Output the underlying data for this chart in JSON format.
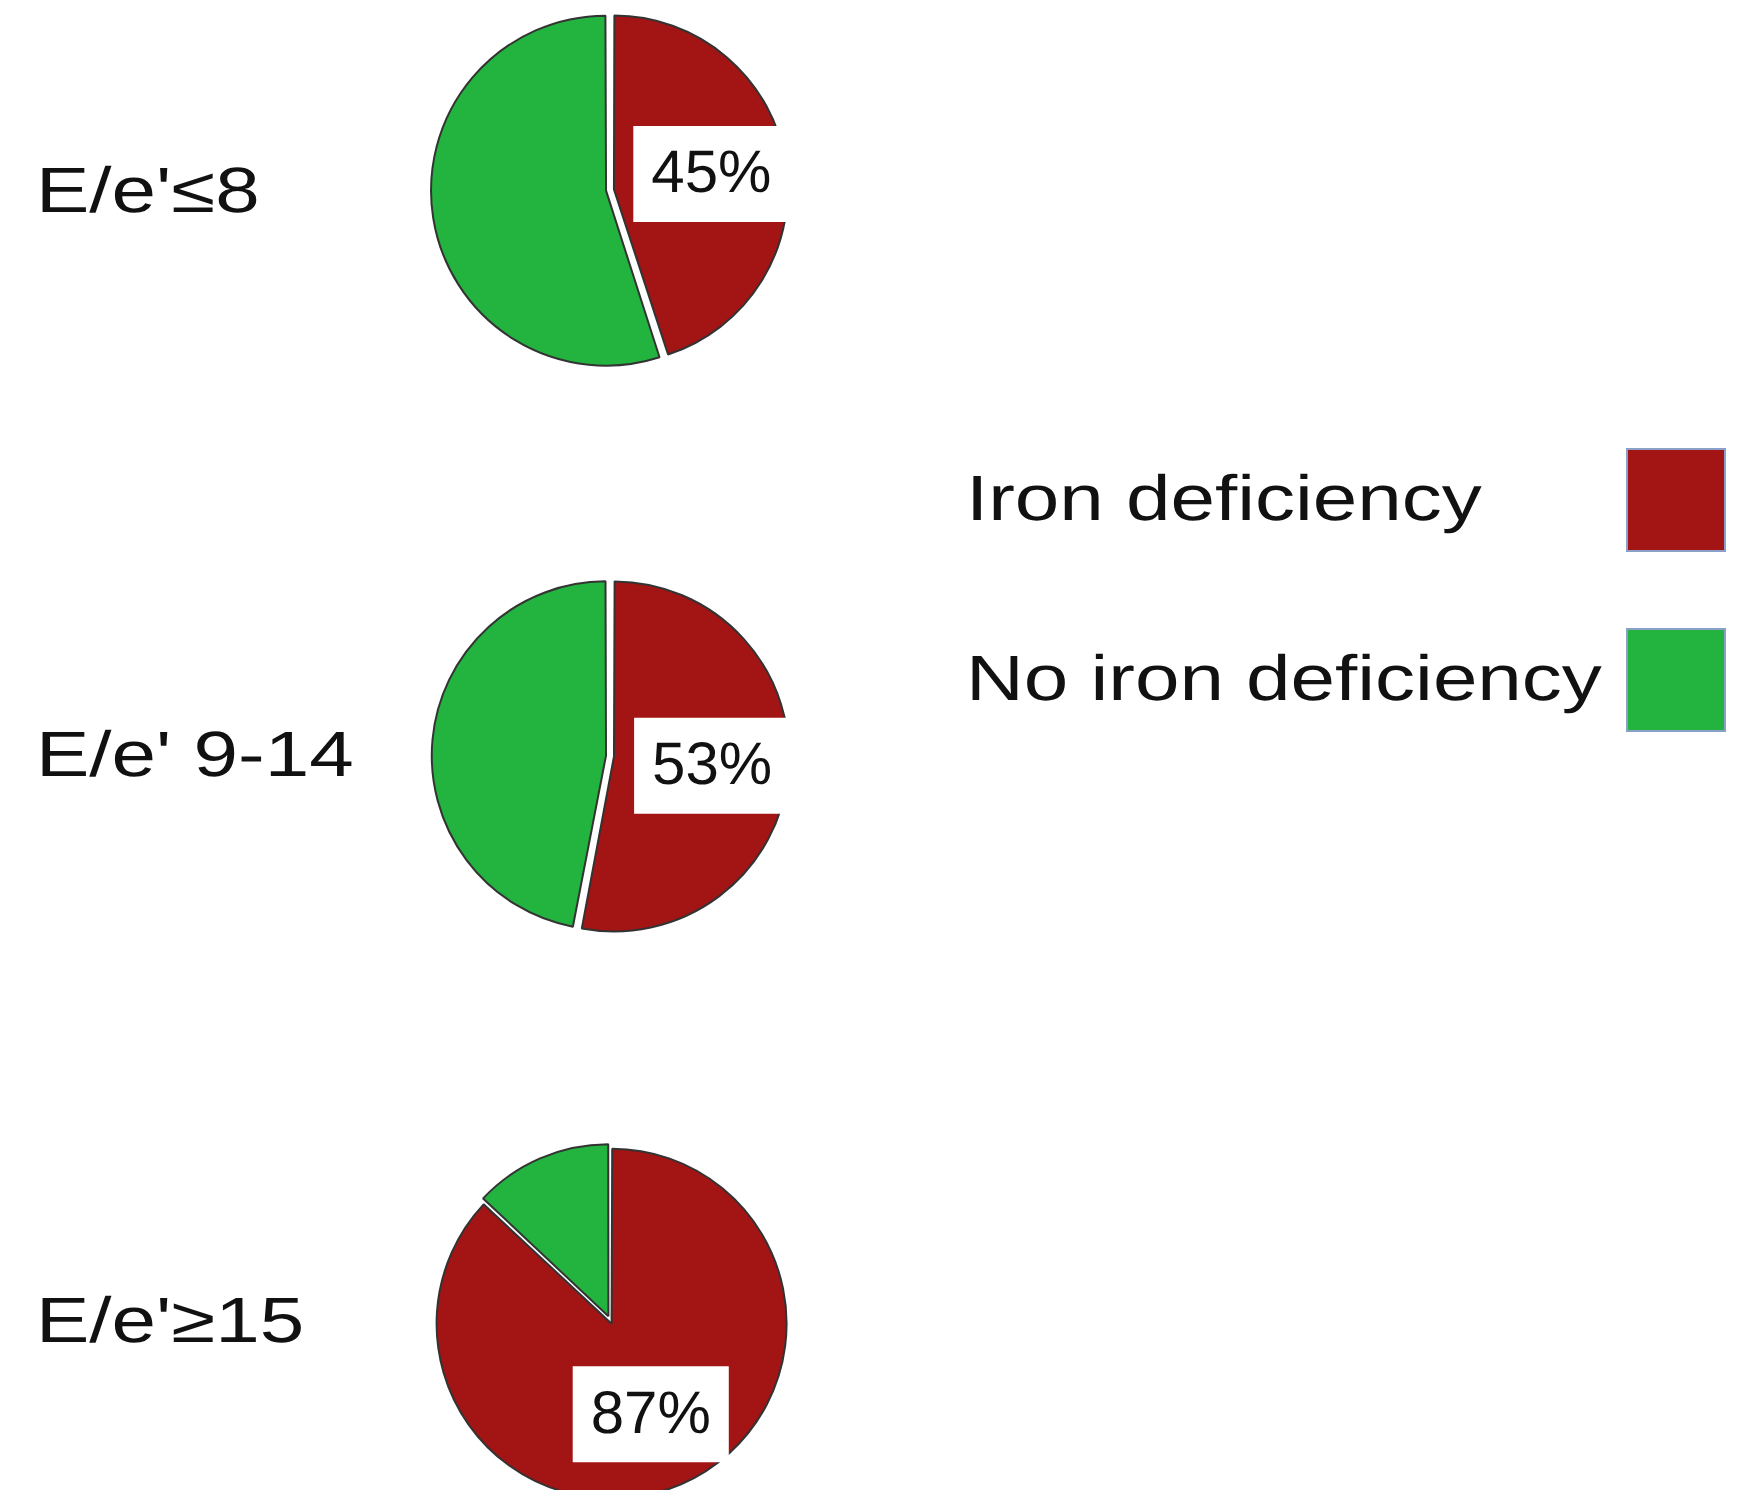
{
  "chart_data": [
    {
      "type": "pie",
      "title": "E/e'≤8",
      "categories": [
        null,
        null
      ],
      "values": [
        45,
        55
      ],
      "colors": [
        "#a31414",
        "#22b43f"
      ],
      "value_labels": [
        "45%",
        null
      ]
    },
    {
      "type": "pie",
      "title": "E/e' 9-14",
      "categories": [
        "Iron deficiency",
        "No iron deficiency"
      ],
      "values": [
        53,
        47
      ],
      "colors": [
        "#a31414",
        "#22b43f"
      ],
      "value_labels": [
        "53%",
        null
      ],
      "legend": "right"
    },
    {
      "type": "pie",
      "title": "E/e'≥15",
      "categories": [
        null,
        null
      ],
      "values": [
        87,
        13
      ],
      "colors": [
        "#a31414",
        "#22b43f"
      ],
      "value_labels": [
        "87%",
        null
      ]
    }
  ]
}
